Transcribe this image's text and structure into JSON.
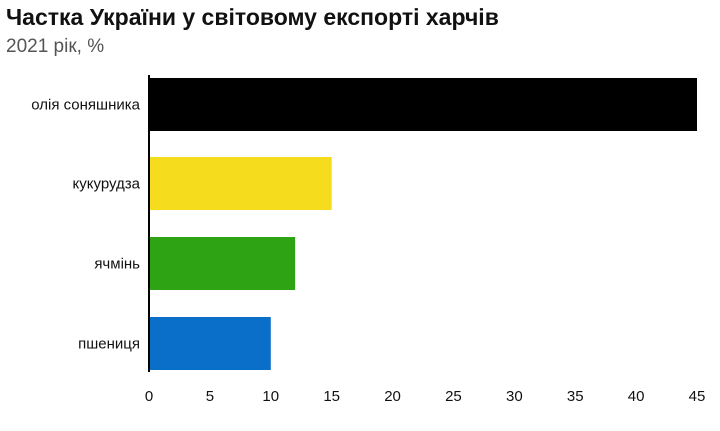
{
  "chart_data": {
    "type": "bar",
    "orientation": "horizontal",
    "title": "Частка України у світовому експорті харчів",
    "subtitle": "2021 рік, %",
    "categories": [
      "олія соняшника",
      "кукурудза",
      "ячмінь",
      "пшениця"
    ],
    "values": [
      45,
      15,
      12,
      10
    ],
    "colors": [
      "#000000",
      "#f5dc1c",
      "#2ea313",
      "#0a6fc9"
    ],
    "xlim": [
      0,
      45
    ],
    "xticks": [
      0,
      5,
      10,
      15,
      20,
      25,
      30,
      35,
      40,
      45
    ],
    "grid": false,
    "xlabel": "",
    "ylabel": ""
  }
}
